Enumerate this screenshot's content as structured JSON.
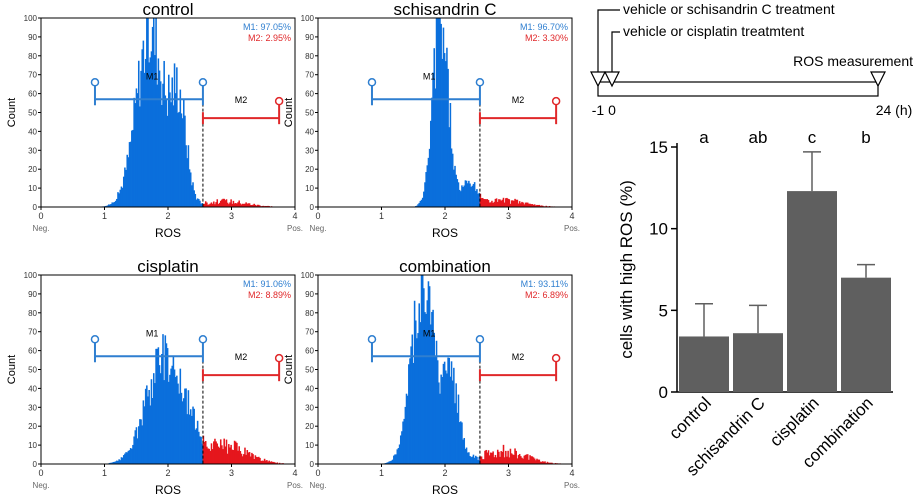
{
  "histograms": [
    {
      "title": "control",
      "m1": "M1: 97.05%",
      "m2": "M2: 2.95%",
      "m1_label": "M1",
      "m2_label": "M2",
      "peak": 1.72,
      "spread": 0.22,
      "shoulder": 0.55,
      "tail": 0.03,
      "peak_count": 94
    },
    {
      "title": "schisandrin C",
      "m1": "M1: 96.70%",
      "m2": "M2: 3.30%",
      "m1_label": "M1",
      "m2_label": "M2",
      "peak": 1.93,
      "spread": 0.12,
      "shoulder": 0.12,
      "tail": 0.035,
      "peak_count": 100
    },
    {
      "title": "cisplatin",
      "m1": "M1: 91.06%",
      "m2": "M2: 8.89%",
      "m1_label": "M1",
      "m2_label": "M2",
      "peak": 1.95,
      "spread": 0.28,
      "shoulder": 0.1,
      "tail": 0.09,
      "peak_count": 58
    },
    {
      "title": "combination",
      "m1": "M1: 93.11%",
      "m2": "M2: 6.89%",
      "m1_label": "M1",
      "m2_label": "M2",
      "peak": 1.65,
      "spread": 0.18,
      "shoulder": 0.45,
      "tail": 0.07,
      "peak_count": 97
    }
  ],
  "histogram_axes": {
    "xlabel": "ROS",
    "ylabel": "Count",
    "x_ticks": [
      "0",
      "1",
      "2",
      "3",
      "4"
    ],
    "x_min_label": "Neg.",
    "x_max_label": "Pos.",
    "y_ticks": [
      "0",
      "10",
      "20",
      "30",
      "40",
      "50",
      "60",
      "70",
      "80",
      "90",
      "100"
    ],
    "gate_split": 2.55,
    "m1_gate": [
      0.85,
      2.55
    ],
    "m2_gate": [
      2.55,
      3.75
    ],
    "colors": {
      "m1": "#2f7fd0",
      "m2": "#e0282a",
      "fill_m1": "#0a6fdc",
      "fill_m2": "#e5161d"
    }
  },
  "timeline": {
    "label_schisandrin": "vehicle or schisandrin C treatment",
    "label_cisplatin": "vehicle or cisplatin treatmtent",
    "label_ros": "ROS measurement",
    "tick_start": "-1",
    "tick_zero": "0",
    "tick_end": "24 (h)"
  },
  "chart_data": {
    "type": "bar",
    "categories": [
      "control",
      "schisandrin C",
      "cisplatin",
      "combination"
    ],
    "values": [
      3.4,
      3.6,
      12.3,
      7.0
    ],
    "errors": [
      2.0,
      1.7,
      2.4,
      0.8
    ],
    "significance": [
      "a",
      "ab",
      "c",
      "b"
    ],
    "ylabel": "cells with high ROS (%)",
    "ylim": [
      0,
      15
    ],
    "y_ticks": [
      "0",
      "5",
      "10",
      "15"
    ],
    "bar_color": "#5f5f5f"
  }
}
